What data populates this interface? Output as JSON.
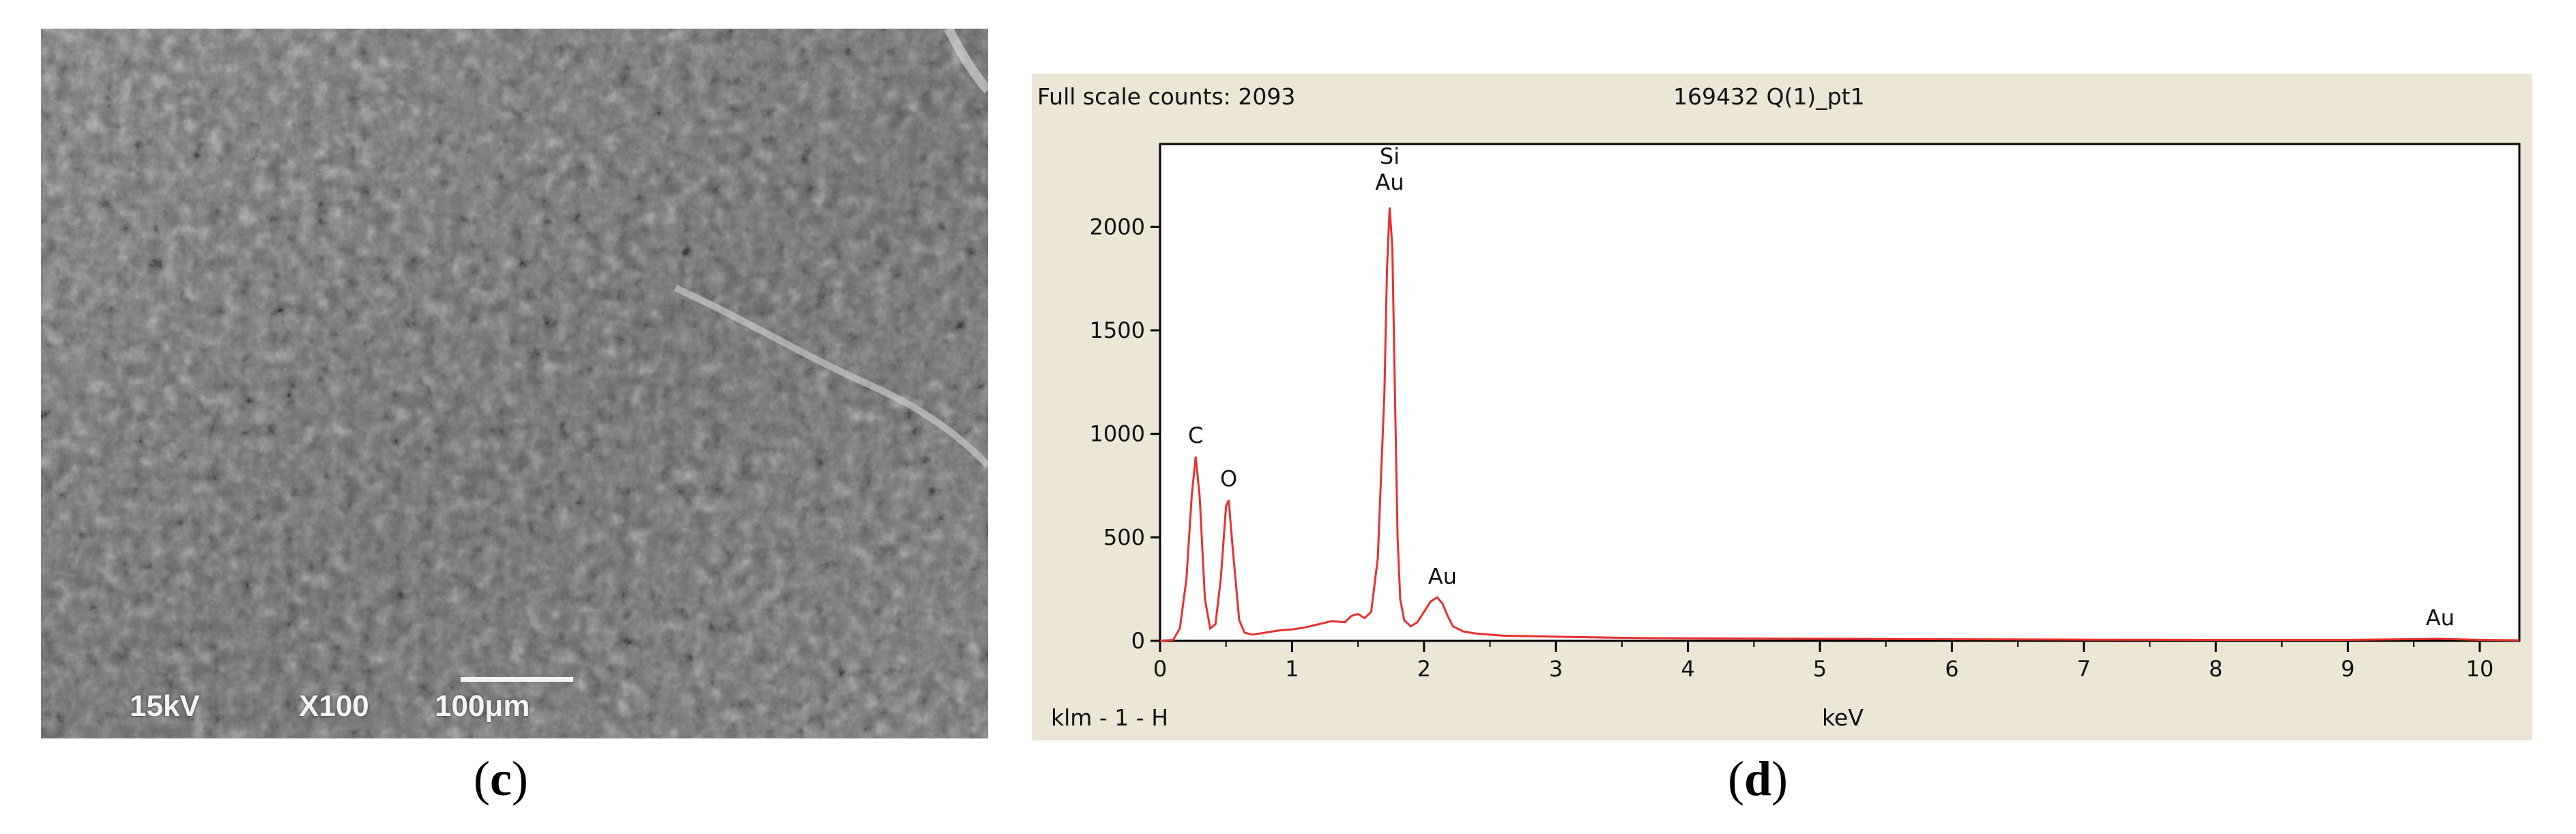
{
  "panels": {
    "c": {
      "caption_open": "(",
      "caption_letter": "c",
      "caption_close": ")",
      "sem": {
        "voltage": "15kV",
        "magnification": "X100",
        "scale_bar_label": "100μm"
      }
    },
    "d": {
      "caption_open": "(",
      "caption_letter": "d",
      "caption_close": ")",
      "full_scale": "Full scale counts: 2093",
      "sample_id": "169432 Q(1)_pt1",
      "bottom_left": "klm - 1 - H"
    }
  },
  "colors": {
    "spectrum": "#e8312f",
    "background": "#ebe6d5",
    "plot_background": "#ffffff"
  },
  "chart_data": {
    "type": "line",
    "title": "",
    "xlabel": "keV",
    "ylabel": "",
    "xlim": [
      0,
      10.3
    ],
    "ylim": [
      0,
      2400
    ],
    "x_ticks": [
      0,
      1,
      2,
      3,
      4,
      5,
      6,
      7,
      8,
      9,
      10
    ],
    "y_ticks": [
      0,
      500,
      1000,
      1500,
      2000
    ],
    "grid": false,
    "legend": "none",
    "series": [
      {
        "x": [
          0.0,
          0.1,
          0.15,
          0.2,
          0.24,
          0.27,
          0.3,
          0.34,
          0.38,
          0.42,
          0.46,
          0.5,
          0.52,
          0.55,
          0.6,
          0.64,
          0.7,
          0.8,
          0.9,
          1.0,
          1.1,
          1.2,
          1.3,
          1.4,
          1.45,
          1.5,
          1.55,
          1.6,
          1.65,
          1.7,
          1.72,
          1.74,
          1.76,
          1.78,
          1.8,
          1.82,
          1.85,
          1.9,
          1.95,
          2.0,
          2.05,
          2.1,
          2.14,
          2.18,
          2.22,
          2.3,
          2.4,
          2.6,
          3.0,
          3.5,
          4.0,
          5.0,
          6.0,
          7.0,
          8.0,
          9.0,
          9.7,
          10.0,
          10.3
        ],
        "y": [
          0,
          5,
          60,
          300,
          700,
          890,
          700,
          200,
          60,
          80,
          300,
          650,
          680,
          450,
          100,
          40,
          30,
          40,
          50,
          55,
          65,
          80,
          95,
          90,
          120,
          130,
          110,
          140,
          400,
          1200,
          1800,
          2093,
          1900,
          1200,
          500,
          200,
          100,
          70,
          90,
          140,
          190,
          210,
          180,
          120,
          70,
          45,
          35,
          25,
          20,
          15,
          12,
          10,
          8,
          6,
          5,
          5,
          10,
          5,
          3
        ]
      }
    ],
    "annotations": [
      {
        "text": "Si",
        "x": 1.74,
        "y": 2093
      },
      {
        "text": "Au",
        "x": 1.74,
        "y": 2093
      },
      {
        "text": "C",
        "x": 0.27,
        "y": 890
      },
      {
        "text": "O",
        "x": 0.52,
        "y": 680
      },
      {
        "text": "Au",
        "x": 2.14,
        "y": 210
      },
      {
        "text": "Au",
        "x": 9.7,
        "y": 10
      }
    ]
  }
}
